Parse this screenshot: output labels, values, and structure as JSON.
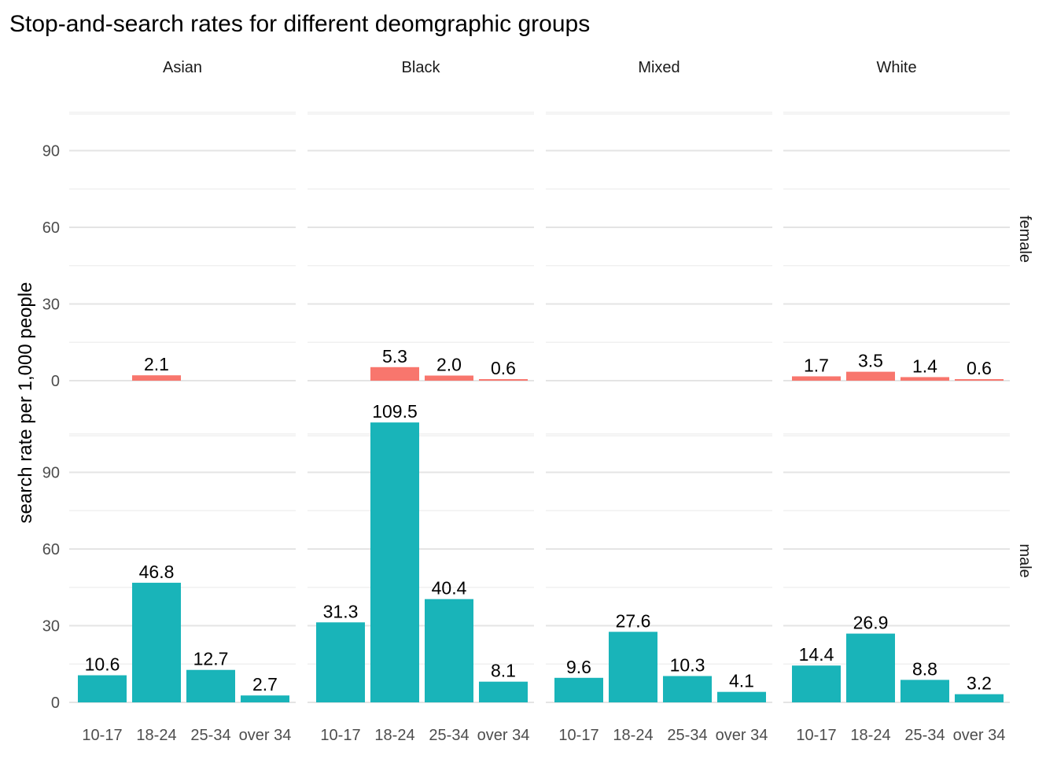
{
  "chart_data": {
    "type": "bar",
    "title": "Stop-and-search rates for different deomgraphic groups",
    "xlabel": "",
    "ylabel": "search rate per 1,000 people",
    "categories": [
      "10-17",
      "18-24",
      "25-34",
      "over 34"
    ],
    "columns": [
      "Asian",
      "Black",
      "Mixed",
      "White"
    ],
    "rows": [
      "female",
      "male"
    ],
    "ylim": [
      0,
      110
    ],
    "yticks": [
      0,
      30,
      60,
      90
    ],
    "grid": true,
    "legend": "none",
    "colors": {
      "female": "#F8766D",
      "male": "#19B4B9"
    },
    "panels": [
      {
        "column": "Asian",
        "row": "female",
        "values": [
          null,
          2.1,
          null,
          null
        ],
        "labels": [
          "",
          "2.1",
          "",
          ""
        ]
      },
      {
        "column": "Black",
        "row": "female",
        "values": [
          null,
          5.3,
          2.0,
          0.6
        ],
        "labels": [
          "",
          "5.3",
          "2.0",
          "0.6"
        ]
      },
      {
        "column": "Mixed",
        "row": "female",
        "values": [
          null,
          null,
          null,
          null
        ],
        "labels": [
          "",
          "",
          "",
          ""
        ]
      },
      {
        "column": "White",
        "row": "female",
        "values": [
          1.7,
          3.5,
          1.4,
          0.6
        ],
        "labels": [
          "1.7",
          "3.5",
          "1.4",
          "0.6"
        ]
      },
      {
        "column": "Asian",
        "row": "male",
        "values": [
          10.6,
          46.8,
          12.7,
          2.7
        ],
        "labels": [
          "10.6",
          "46.8",
          "12.7",
          "2.7"
        ]
      },
      {
        "column": "Black",
        "row": "male",
        "values": [
          31.3,
          109.5,
          40.4,
          8.1
        ],
        "labels": [
          "31.3",
          "109.5",
          "40.4",
          "8.1"
        ]
      },
      {
        "column": "Mixed",
        "row": "male",
        "values": [
          9.6,
          27.6,
          10.3,
          4.1
        ],
        "labels": [
          "9.6",
          "27.6",
          "10.3",
          "4.1"
        ]
      },
      {
        "column": "White",
        "row": "male",
        "values": [
          14.4,
          26.9,
          8.8,
          3.2
        ],
        "labels": [
          "14.4",
          "26.9",
          "8.8",
          "3.2"
        ]
      }
    ]
  }
}
